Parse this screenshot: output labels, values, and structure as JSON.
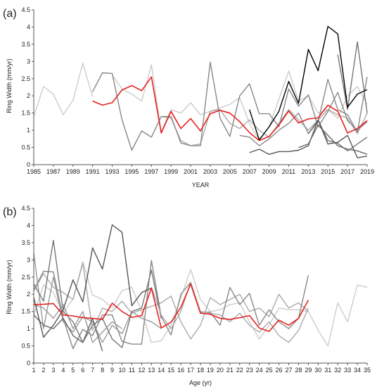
{
  "chart_data": [
    {
      "type": "line",
      "panel_label": "(a)",
      "xlabel": "YEAR",
      "ylabel": "Ring Width (mm/yr)",
      "xlim": [
        1985,
        2019
      ],
      "ylim": [
        0,
        4.5
      ],
      "x_ticks": [
        "1985",
        "1987",
        "1989",
        "1991",
        "1993",
        "1995",
        "1997",
        "1999",
        "2001",
        "2003",
        "2005",
        "2007",
        "2009",
        "2011",
        "2013",
        "2015",
        "2017",
        "2019"
      ],
      "y_ticks": [
        "0",
        "0.5",
        "1",
        "1.5",
        "2",
        "2.5",
        "3",
        "3.5",
        "4",
        "4.5"
      ],
      "grid": false,
      "legend": "none",
      "series": [
        {
          "color": "#cccccc",
          "x": [
            1985,
            1986,
            1987,
            1988,
            1989,
            1990,
            1991
          ],
          "y": [
            1.4,
            2.27,
            2.05,
            1.45,
            1.87,
            2.95,
            1.98
          ]
        },
        {
          "color": "#cccccc",
          "x": [
            1993,
            1994,
            1995,
            1996,
            1997,
            1998,
            1999,
            2000,
            2001,
            2002,
            2003,
            2004,
            2005,
            2006,
            2007,
            2008,
            2009,
            2010,
            2011,
            2012,
            2013,
            2014,
            2015,
            2016,
            2017,
            2018,
            2019
          ],
          "y": [
            2.6,
            2.2,
            2.05,
            1.85,
            2.9,
            0.95,
            1.6,
            1.5,
            1.8,
            1.45,
            1.55,
            1.65,
            1.75,
            1.95,
            1.2,
            0.7,
            1.1,
            1.9,
            2.72,
            1.85,
            2.0,
            1.5,
            1.6,
            1.35,
            2.0,
            2.27,
            1.75
          ]
        },
        {
          "color": "#aaaaaa",
          "x": [
            1998,
            1999,
            2000,
            2001,
            2002,
            2003,
            2004,
            2005,
            2006,
            2007,
            2008,
            2009,
            2010,
            2011,
            2012,
            2013,
            2014,
            2015,
            2016,
            2017,
            2018,
            2019
          ],
          "y": [
            1.4,
            1.35,
            0.7,
            0.55,
            0.6,
            1.55,
            1.6,
            1.2,
            1.05,
            1.3,
            1.0,
            0.8,
            1.2,
            1.6,
            1.3,
            1.0,
            1.3,
            1.6,
            1.45,
            1.35,
            0.9,
            1.5
          ]
        },
        {
          "color": "#888888",
          "x": [
            1991,
            1992,
            1993,
            1994,
            1995,
            1996,
            1997,
            1998,
            1999,
            2000,
            2001,
            2002,
            2003,
            2004,
            2005,
            2006,
            2007,
            2008,
            2009,
            2010,
            2011,
            2012,
            2013,
            2014,
            2015,
            2016,
            2017,
            2018,
            2019
          ],
          "y": [
            2.12,
            2.67,
            2.65,
            1.3,
            0.42,
            0.98,
            0.8,
            1.4,
            1.4,
            0.63,
            0.55,
            0.55,
            2.98,
            1.35,
            0.82,
            2.0,
            2.35,
            1.48,
            1.48,
            1.1,
            2.2,
            1.7,
            2.03,
            1.1,
            1.55,
            2.1,
            1.28,
            1.0,
            1.25
          ]
        },
        {
          "color": "#888888",
          "x": [
            2006,
            2007,
            2008,
            2009,
            2010,
            2011,
            2012,
            2013,
            2014,
            2015,
            2016,
            2017,
            2018,
            2019
          ],
          "y": [
            0.85,
            0.8,
            0.55,
            0.75,
            1.0,
            1.2,
            1.5,
            0.9,
            1.25,
            2.48,
            1.6,
            1.45,
            0.95,
            2.55
          ]
        },
        {
          "color": "#777777",
          "x": [
            2013,
            2014,
            2015,
            2016,
            2017,
            2018,
            2019
          ],
          "y": [
            0.9,
            1.3,
            0.7,
            0.62,
            0.4,
            0.6,
            0.8
          ]
        },
        {
          "color": "#777777",
          "x": [
            2016,
            2017,
            2018,
            2019
          ],
          "y": [
            3.2,
            1.6,
            3.57,
            1.5
          ]
        },
        {
          "color": "#555555",
          "x": [
            2007,
            2008,
            2009,
            2010,
            2011,
            2012,
            2013,
            2014,
            2015,
            2016,
            2017,
            2018,
            2019
          ],
          "y": [
            0.35,
            0.45,
            0.3,
            0.38,
            0.38,
            0.42,
            0.55,
            1.3,
            0.6,
            0.65,
            0.85,
            0.2,
            0.25
          ]
        },
        {
          "color": "#666666",
          "x": [
            2012,
            2013,
            2014,
            2015,
            2016,
            2017,
            2018,
            2019
          ],
          "y": [
            0.5,
            0.6,
            1.15,
            0.85,
            0.55,
            0.45,
            0.4,
            0.3
          ]
        },
        {
          "color": "#000000",
          "x": [
            2007,
            2008,
            2009,
            2010,
            2011,
            2012,
            2013,
            2014,
            2015,
            2016,
            2017,
            2018,
            2019
          ],
          "y": [
            1.6,
            0.72,
            1.1,
            1.55,
            2.42,
            1.78,
            3.35,
            2.73,
            4.02,
            3.8,
            1.67,
            2.05,
            2.18
          ]
        },
        {
          "color": "#e8201f",
          "x": [
            1991,
            1992,
            1993,
            1994,
            1995,
            1996,
            1997,
            1998,
            1999,
            2000,
            2001,
            2002,
            2003,
            2004,
            2005,
            2006,
            2007,
            2008,
            2009,
            2010,
            2011,
            2012,
            2013,
            2014,
            2015,
            2016,
            2017,
            2018,
            2019
          ],
          "y": [
            1.85,
            1.73,
            1.8,
            2.17,
            2.3,
            2.15,
            2.55,
            0.92,
            1.55,
            1.05,
            1.34,
            0.98,
            1.48,
            1.58,
            1.5,
            1.25,
            0.93,
            0.7,
            0.82,
            1.15,
            1.56,
            1.21,
            1.33,
            1.36,
            1.73,
            1.55,
            0.92,
            1.05,
            1.28
          ]
        }
      ]
    },
    {
      "type": "line",
      "panel_label": "(b)",
      "xlabel": "Age (yr)",
      "ylabel": "Ring Width (mm/yr)",
      "xlim": [
        1,
        35
      ],
      "ylim": [
        0,
        4.5
      ],
      "x_ticks": [
        "1",
        "2",
        "3",
        "4",
        "5",
        "6",
        "7",
        "8",
        "9",
        "10",
        "11",
        "12",
        "13",
        "14",
        "15",
        "16",
        "17",
        "18",
        "19",
        "20",
        "21",
        "22",
        "23",
        "24",
        "25",
        "26",
        "27",
        "28",
        "29",
        "30",
        "31",
        "32",
        "33",
        "34",
        "35"
      ],
      "y_ticks": [
        "0",
        "0.5",
        "1",
        "1.5",
        "2",
        "2.5",
        "3",
        "3.5",
        "4",
        "4.5"
      ],
      "grid": false,
      "legend": "none",
      "series": [
        {
          "color": "#cccccc",
          "x": [
            1,
            2,
            3,
            4,
            5,
            6,
            7,
            8,
            9,
            10,
            11,
            12,
            13,
            14,
            15,
            16,
            17,
            18,
            19,
            20,
            21,
            22,
            23,
            24,
            25,
            26,
            27,
            28,
            29,
            30,
            31,
            32,
            33,
            34,
            35
          ],
          "y": [
            1.4,
            2.27,
            2.05,
            1.45,
            1.87,
            2.95,
            1.98,
            1.85,
            1.6,
            2.1,
            2.2,
            1.5,
            0.6,
            0.65,
            1.1,
            1.9,
            2.72,
            1.85,
            1.5,
            1.55,
            1.7,
            1.75,
            1.2,
            0.7,
            1.1,
            1.6,
            1.55,
            1.55,
            1.5,
            0.95,
            0.5,
            1.75,
            1.2,
            2.27,
            2.2
          ]
        },
        {
          "color": "#aaaaaa",
          "x": [
            1,
            2,
            3,
            4,
            5,
            6,
            7,
            8,
            9,
            10,
            11,
            12,
            13,
            14,
            15,
            16,
            17,
            18,
            19,
            20,
            21,
            22,
            23,
            24,
            25,
            26,
            27,
            28,
            29
          ],
          "y": [
            2.1,
            2.6,
            2.2,
            2.05,
            1.85,
            2.9,
            0.95,
            1.6,
            1.5,
            1.8,
            1.45,
            1.55,
            1.65,
            1.75,
            1.95,
            1.2,
            0.7,
            1.1,
            1.9,
            1.7,
            1.85,
            2.0,
            1.5,
            1.6,
            1.35,
            2.0,
            1.6,
            1.75,
            1.5
          ]
        },
        {
          "color": "#888888",
          "x": [
            1,
            2,
            3,
            4,
            5,
            6,
            7,
            8,
            9,
            10,
            11,
            12,
            13,
            14,
            15,
            16,
            17,
            18,
            19,
            20,
            21,
            22,
            23,
            24,
            25,
            26,
            27,
            28,
            29
          ],
          "y": [
            2.12,
            2.67,
            2.65,
            1.3,
            0.42,
            0.98,
            0.8,
            1.4,
            1.4,
            0.63,
            0.55,
            0.55,
            2.98,
            1.35,
            0.82,
            2.0,
            2.35,
            1.48,
            1.48,
            1.1,
            2.2,
            1.7,
            2.03,
            1.1,
            1.55,
            1.2,
            1.0,
            1.3,
            2.55
          ]
        },
        {
          "color": "#999999",
          "x": [
            1,
            2,
            3,
            4,
            5,
            6,
            7,
            8,
            9,
            10,
            11,
            12,
            13,
            14
          ],
          "y": [
            3.2,
            1.0,
            2.5,
            1.2,
            0.9,
            1.35,
            1.2,
            0.6,
            1.1,
            0.85,
            1.5,
            1.3,
            1.2,
            1.0
          ]
        },
        {
          "color": "#777777",
          "x": [
            1,
            2,
            3,
            4,
            5,
            6,
            7,
            8,
            9,
            10,
            11,
            12,
            13,
            14
          ],
          "y": [
            2.3,
            1.8,
            3.57,
            1.5,
            1.2,
            0.6,
            1.1,
            1.3,
            0.7,
            0.45,
            1.5,
            1.6,
            2.7,
            1.3
          ]
        },
        {
          "color": "#999999",
          "x": [
            1,
            2,
            3,
            4,
            5,
            6,
            7,
            8,
            9,
            10
          ],
          "y": [
            1.7,
            1.6,
            1.3,
            1.7,
            1.0,
            1.5,
            0.6,
            0.9,
            1.2,
            1.0
          ]
        },
        {
          "color": "#666666",
          "x": [
            1,
            2,
            3,
            4,
            5,
            6,
            7,
            8
          ],
          "y": [
            1.4,
            1.1,
            1.0,
            1.3,
            0.8,
            0.6,
            1.3,
            0.35
          ]
        },
        {
          "color": "#555555",
          "x": [
            1,
            2,
            3,
            4,
            5,
            6,
            7,
            8,
            9,
            10,
            11,
            12,
            13
          ],
          "y": [
            1.9,
            0.75,
            1.1,
            1.55,
            2.42,
            1.78,
            3.35,
            2.73,
            4.02,
            3.8,
            1.67,
            2.05,
            2.18
          ]
        },
        {
          "color": "#aaaaaa",
          "x": [
            13,
            14,
            15,
            16,
            17,
            18,
            19,
            20,
            21,
            22,
            23,
            24,
            25,
            26,
            27,
            28,
            29
          ],
          "y": [
            2.2,
            1.4,
            1.0,
            1.5,
            2.35,
            1.5,
            1.45,
            1.4,
            1.2,
            1.45,
            1.1,
            0.9,
            1.2,
            0.8,
            0.6,
            0.95,
            1.6
          ]
        },
        {
          "color": "#e8201f",
          "x": [
            1,
            2,
            3,
            4,
            5,
            6,
            7,
            8,
            9,
            10,
            11,
            12,
            13,
            14,
            15,
            16,
            17,
            18,
            19,
            20,
            21,
            22,
            23,
            24,
            25,
            26,
            27,
            28,
            29
          ],
          "y": [
            1.7,
            1.71,
            1.73,
            1.4,
            1.37,
            1.32,
            1.3,
            1.27,
            1.74,
            1.5,
            1.33,
            1.38,
            2.18,
            1.02,
            1.19,
            1.62,
            2.3,
            1.45,
            1.42,
            1.3,
            1.27,
            1.32,
            1.38,
            1.02,
            0.92,
            1.25,
            1.1,
            1.3,
            1.83
          ]
        }
      ]
    }
  ]
}
